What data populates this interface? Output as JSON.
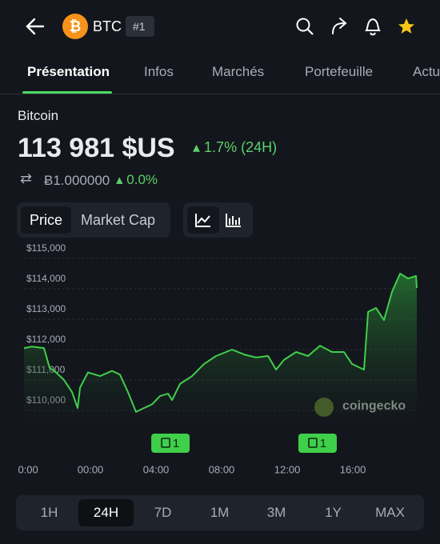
{
  "header": {
    "symbol": "BTC",
    "rank": "#1"
  },
  "tabs": [
    {
      "label": "Présentation",
      "active": true
    },
    {
      "label": "Infos",
      "active": false
    },
    {
      "label": "Marchés",
      "active": false
    },
    {
      "label": "Portefeuille",
      "active": false
    },
    {
      "label": "Actu",
      "active": false
    }
  ],
  "coin": {
    "name": "Bitcoin",
    "price": "113 981 $US",
    "change": "1.7% (24H)",
    "btc_price": "Ƀ1.000000",
    "btc_change": "0.0%"
  },
  "toggle": [
    {
      "label": "Price",
      "active": true
    },
    {
      "label": "Market Cap",
      "active": false
    }
  ],
  "chart_data": {
    "type": "area",
    "color": "#3fcf4a",
    "x": [
      -4.05,
      -3.56,
      -2.83,
      -2.49,
      -2.1,
      -1.61,
      -1.12,
      -0.78,
      -0.63,
      -0.15,
      0.59,
      1.32,
      1.8,
      2.29,
      2.78,
      3.27,
      3.76,
      4.24,
      4.73,
      4.98,
      5.46,
      6.2,
      6.93,
      7.66,
      8.63,
      9.37,
      10.1,
      10.83,
      11.32,
      11.8,
      12.54,
      13.27,
      14.0,
      14.73,
      15.46,
      15.95,
      16.68,
      16.93,
      17.41,
      17.9,
      18.39,
      18.88,
      19.37,
      19.85,
      19.9
    ],
    "values": [
      112050,
      112100,
      112050,
      111400,
      111250,
      111000,
      110600,
      110080,
      110750,
      111250,
      111130,
      111300,
      111180,
      110600,
      109950,
      110080,
      110200,
      110470,
      110550,
      110340,
      110870,
      111130,
      111530,
      111790,
      112000,
      111840,
      111740,
      111790,
      111340,
      111660,
      111920,
      111790,
      112130,
      111920,
      111920,
      111530,
      111340,
      113240,
      113370,
      112970,
      113900,
      114500,
      114340,
      114420,
      114030
    ],
    "xlim": [
      -4.05,
      19.9
    ],
    "xticks": [
      {
        "value": -3.8,
        "label": "0:00"
      },
      {
        "value": 0,
        "label": "00:00"
      },
      {
        "value": 4,
        "label": "04:00"
      },
      {
        "value": 8,
        "label": "08:00"
      },
      {
        "value": 12,
        "label": "12:00"
      },
      {
        "value": 16,
        "label": "16:00"
      }
    ],
    "ylim": [
      109500,
      115200
    ],
    "yticks": [
      {
        "value": 110000,
        "label": "$110,000"
      },
      {
        "value": 111000,
        "label": "$111,000"
      },
      {
        "value": 112000,
        "label": "$112,000"
      },
      {
        "value": 113000,
        "label": "$113,000"
      },
      {
        "value": 114000,
        "label": "$114,000"
      },
      {
        "value": 115000,
        "label": "$115,000"
      }
    ],
    "grid": true,
    "annotations": [
      {
        "x": 4.88,
        "label": "1"
      },
      {
        "x": 13.85,
        "label": "1"
      }
    ],
    "watermark": "coingecko"
  },
  "ranges": [
    {
      "label": "1H",
      "active": false
    },
    {
      "label": "24H",
      "active": true
    },
    {
      "label": "7D",
      "active": false
    },
    {
      "label": "1M",
      "active": false
    },
    {
      "label": "3M",
      "active": false
    },
    {
      "label": "1Y",
      "active": false
    },
    {
      "label": "MAX",
      "active": false
    }
  ]
}
